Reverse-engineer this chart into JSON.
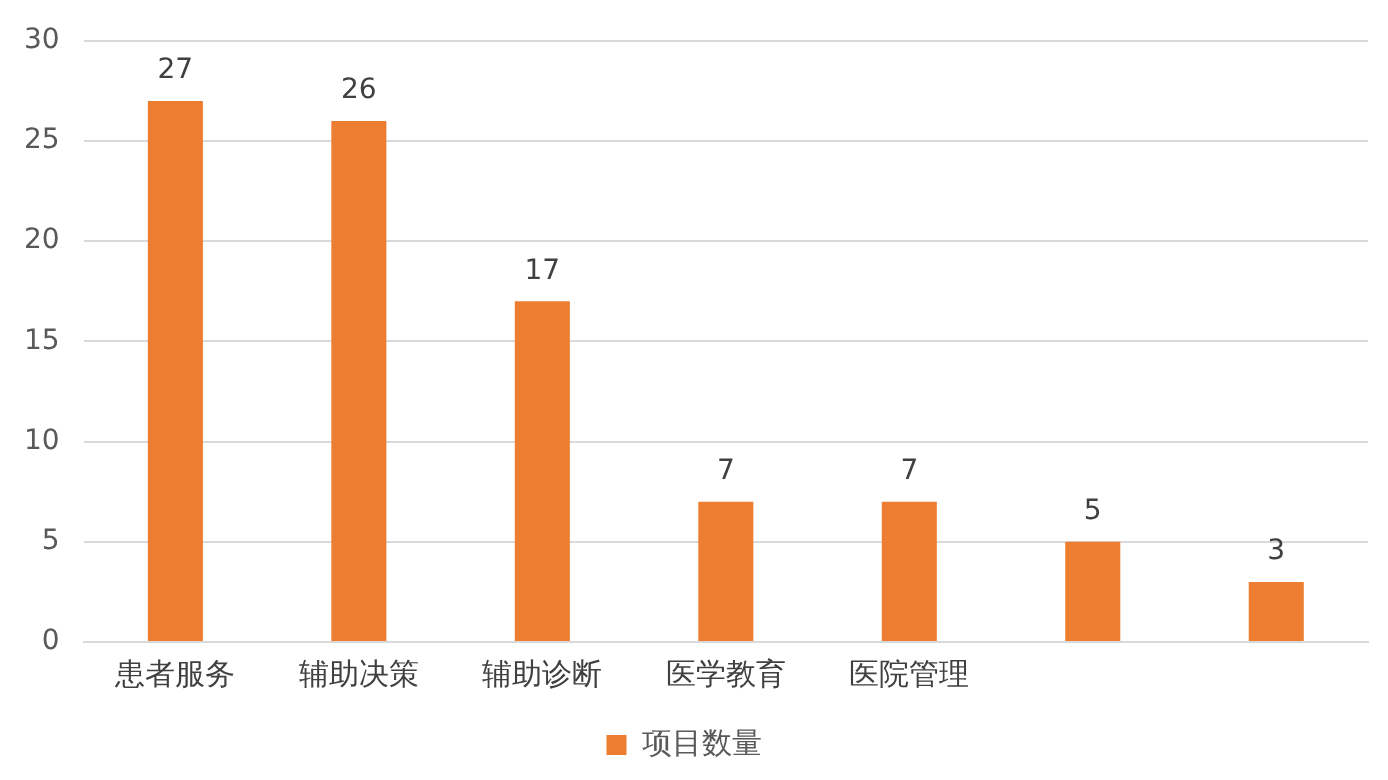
{
  "chart_data": {
    "type": "bar",
    "categories": [
      "患者服务",
      "辅助决策",
      "辅助诊断",
      "医学教育",
      "医院管理",
      null,
      null
    ],
    "series": [
      {
        "name": "项目数量",
        "color": "#ed7d31",
        "values": [
          27,
          26,
          17,
          7,
          7,
          5,
          3
        ]
      }
    ],
    "ylim": [
      0,
      30
    ],
    "yticks": [
      0,
      5,
      10,
      15,
      20,
      25,
      30
    ],
    "grid": "y",
    "legend": "bottom",
    "data_labels": true
  }
}
